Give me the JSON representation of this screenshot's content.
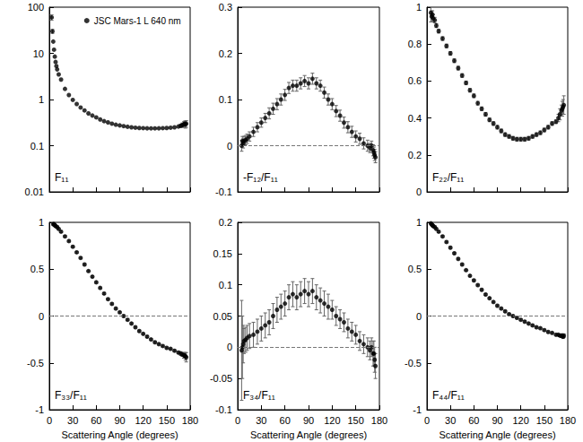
{
  "chart_data": [
    {
      "type": "scatter",
      "annotation": "F₁₁",
      "log": "y",
      "grid": false,
      "tick_labels": "y",
      "legend": "upper right",
      "xlim": [
        0,
        180
      ],
      "xticks": [
        0,
        30,
        60,
        90,
        120,
        150,
        180
      ],
      "ylim": [
        0.01,
        100
      ],
      "yticks": [
        0.01,
        0.1,
        1,
        10,
        100
      ],
      "x": [
        3,
        4,
        5,
        6,
        7,
        8,
        9,
        10,
        12,
        15,
        20,
        25,
        30,
        35,
        40,
        45,
        50,
        55,
        60,
        65,
        70,
        75,
        80,
        85,
        90,
        95,
        100,
        105,
        110,
        115,
        120,
        125,
        130,
        135,
        140,
        145,
        150,
        155,
        160,
        165,
        168,
        170,
        172,
        173,
        174,
        175
      ],
      "series": [
        {
          "name": "JSC Mars-1 L 640 nm",
          "color": "#000000",
          "marker": "circle",
          "values": [
            60,
            30,
            18,
            12,
            8.5,
            6.5,
            5.3,
            4.5,
            3.5,
            2.7,
            1.7,
            1.25,
            0.98,
            0.8,
            0.67,
            0.58,
            0.5,
            0.45,
            0.41,
            0.37,
            0.34,
            0.32,
            0.3,
            0.285,
            0.275,
            0.265,
            0.257,
            0.25,
            0.245,
            0.242,
            0.24,
            0.238,
            0.237,
            0.237,
            0.238,
            0.24,
            0.242,
            0.245,
            0.25,
            0.26,
            0.27,
            0.28,
            0.29,
            0.3,
            0.29,
            0.3
          ],
          "errors": [
            8,
            3,
            0,
            0,
            0,
            0,
            0,
            0,
            0,
            0,
            0,
            0,
            0,
            0,
            0,
            0,
            0,
            0,
            0,
            0,
            0,
            0,
            0,
            0,
            0,
            0,
            0,
            0,
            0,
            0,
            0,
            0,
            0,
            0,
            0,
            0,
            0,
            0,
            0,
            0,
            0.02,
            0.03,
            0.04,
            0.04,
            0.05,
            0.05
          ]
        }
      ]
    },
    {
      "type": "scatter",
      "annotation": "-F₁₂/F₁₁",
      "grid": false,
      "tick_labels": "y",
      "hline": 0,
      "xlim": [
        0,
        180
      ],
      "xticks": [
        0,
        30,
        60,
        90,
        120,
        150,
        180
      ],
      "ylim": [
        -0.1,
        0.3
      ],
      "yticks": [
        -0.1,
        0,
        0.1,
        0.2,
        0.3
      ],
      "x": [
        5,
        6,
        7,
        8,
        10,
        12,
        15,
        20,
        25,
        30,
        35,
        40,
        45,
        50,
        55,
        60,
        65,
        70,
        75,
        80,
        85,
        90,
        95,
        100,
        105,
        110,
        115,
        120,
        125,
        130,
        135,
        140,
        145,
        150,
        155,
        160,
        165,
        168,
        170,
        172,
        173,
        174,
        175
      ],
      "series": [
        {
          "color": "#000000",
          "marker": "circle",
          "values": [
            0,
            0.01,
            0.005,
            0.01,
            0.012,
            0.015,
            0.02,
            0.03,
            0.04,
            0.05,
            0.06,
            0.07,
            0.08,
            0.09,
            0.1,
            0.11,
            0.125,
            0.13,
            0.13,
            0.135,
            0.14,
            0.135,
            0.145,
            0.135,
            0.13,
            0.115,
            0.1,
            0.09,
            0.075,
            0.065,
            0.05,
            0.04,
            0.03,
            0.02,
            0.015,
            0.005,
            0,
            -0.005,
            0,
            -0.01,
            -0.015,
            -0.02,
            -0.025
          ],
          "errors": [
            0.012,
            0.01,
            0.01,
            0.01,
            0.01,
            0.01,
            0.01,
            0.01,
            0.01,
            0.01,
            0.01,
            0.012,
            0.012,
            0.012,
            0.012,
            0.012,
            0.012,
            0.012,
            0.012,
            0.012,
            0.012,
            0.012,
            0.012,
            0.012,
            0.012,
            0.012,
            0.012,
            0.012,
            0.012,
            0.012,
            0.012,
            0.012,
            0.012,
            0.012,
            0.012,
            0.012,
            0.012,
            0.01,
            0.01,
            0.012,
            0.012,
            0.012,
            0.012
          ]
        }
      ]
    },
    {
      "type": "scatter",
      "annotation": "F₂₂/F₁₁",
      "grid": false,
      "tick_labels": "y",
      "xlim": [
        0,
        180
      ],
      "xticks": [
        0,
        30,
        60,
        90,
        120,
        150,
        180
      ],
      "ylim": [
        0,
        1
      ],
      "yticks": [
        0,
        0.2,
        0.4,
        0.6,
        0.8,
        1
      ],
      "x": [
        5,
        6,
        7,
        8,
        10,
        12,
        15,
        20,
        25,
        30,
        35,
        40,
        45,
        50,
        55,
        60,
        65,
        70,
        75,
        80,
        85,
        90,
        95,
        100,
        105,
        110,
        115,
        120,
        125,
        130,
        135,
        140,
        145,
        150,
        155,
        160,
        165,
        168,
        170,
        172,
        173,
        174,
        175
      ],
      "series": [
        {
          "color": "#000000",
          "marker": "circle",
          "values": [
            0.97,
            0.95,
            0.96,
            0.94,
            0.93,
            0.9,
            0.87,
            0.83,
            0.79,
            0.75,
            0.71,
            0.67,
            0.63,
            0.59,
            0.55,
            0.52,
            0.48,
            0.45,
            0.42,
            0.39,
            0.37,
            0.35,
            0.33,
            0.31,
            0.3,
            0.29,
            0.285,
            0.285,
            0.285,
            0.29,
            0.3,
            0.31,
            0.32,
            0.335,
            0.35,
            0.37,
            0.38,
            0.4,
            0.42,
            0.44,
            0.45,
            0.46,
            0.47
          ],
          "errors": [
            0.05,
            0.03,
            0.02,
            0.02,
            0.015,
            0.01,
            0.01,
            0.01,
            0.01,
            0.01,
            0.01,
            0.01,
            0.01,
            0.01,
            0.01,
            0.01,
            0.01,
            0.01,
            0.01,
            0.01,
            0.01,
            0.01,
            0.01,
            0.01,
            0.01,
            0.01,
            0.01,
            0.01,
            0.01,
            0.01,
            0.01,
            0.01,
            0.01,
            0.01,
            0.01,
            0.01,
            0.01,
            0.02,
            0.03,
            0.03,
            0.04,
            0.04,
            0.05
          ]
        }
      ]
    },
    {
      "type": "scatter",
      "annotation": "F₃₃/F₁₁",
      "grid": false,
      "hline": 0,
      "xlabel": "Scattering Angle (degrees)",
      "xlim": [
        0,
        180
      ],
      "xticks": [
        0,
        30,
        60,
        90,
        120,
        150,
        180
      ],
      "ylim": [
        -1,
        1
      ],
      "yticks": [
        -1,
        -0.5,
        0,
        0.5,
        1
      ],
      "x": [
        5,
        6,
        7,
        8,
        10,
        12,
        15,
        20,
        25,
        30,
        35,
        40,
        45,
        50,
        55,
        60,
        65,
        70,
        75,
        80,
        85,
        90,
        95,
        100,
        105,
        110,
        115,
        120,
        125,
        130,
        135,
        140,
        145,
        150,
        155,
        160,
        165,
        168,
        170,
        172,
        173,
        174,
        175
      ],
      "series": [
        {
          "color": "#000000",
          "marker": "circle",
          "values": [
            0.98,
            0.98,
            0.97,
            0.96,
            0.95,
            0.93,
            0.9,
            0.85,
            0.8,
            0.74,
            0.68,
            0.62,
            0.55,
            0.48,
            0.42,
            0.36,
            0.3,
            0.24,
            0.18,
            0.13,
            0.08,
            0.04,
            0,
            -0.04,
            -0.08,
            -0.12,
            -0.16,
            -0.19,
            -0.22,
            -0.25,
            -0.28,
            -0.3,
            -0.32,
            -0.34,
            -0.35,
            -0.37,
            -0.39,
            -0.4,
            -0.41,
            -0.42,
            -0.42,
            -0.43,
            -0.44
          ],
          "errors": [
            0.01,
            0.01,
            0.01,
            0.01,
            0.01,
            0.01,
            0.01,
            0.01,
            0.01,
            0.01,
            0.01,
            0.01,
            0.01,
            0.01,
            0.01,
            0.01,
            0.01,
            0.01,
            0.01,
            0.01,
            0.01,
            0.01,
            0.01,
            0.01,
            0.01,
            0.01,
            0.01,
            0.01,
            0.01,
            0.01,
            0.01,
            0.01,
            0.01,
            0.01,
            0.01,
            0.01,
            0.01,
            0.02,
            0.02,
            0.03,
            0.03,
            0.04,
            0.05
          ]
        }
      ]
    },
    {
      "type": "scatter",
      "annotation": "F₃₄/F₁₁",
      "grid": false,
      "hline": 0,
      "xlabel": "Scattering Angle (degrees)",
      "xlim": [
        0,
        180
      ],
      "xticks": [
        0,
        30,
        60,
        90,
        120,
        150,
        180
      ],
      "ylim": [
        -0.1,
        0.2
      ],
      "yticks": [
        -0.1,
        -0.05,
        0,
        0.05,
        0.1,
        0.15,
        0.2
      ],
      "x": [
        5,
        6,
        7,
        8,
        10,
        12,
        15,
        20,
        25,
        30,
        35,
        40,
        45,
        50,
        55,
        60,
        65,
        70,
        75,
        80,
        85,
        90,
        95,
        100,
        105,
        110,
        115,
        120,
        125,
        130,
        135,
        140,
        145,
        150,
        155,
        160,
        165,
        168,
        170,
        172,
        173,
        174,
        175
      ],
      "series": [
        {
          "color": "#000000",
          "marker": "circle",
          "values": [
            -0.005,
            0,
            0.005,
            0.01,
            0.012,
            0.015,
            0.018,
            0.02,
            0.025,
            0.03,
            0.035,
            0.04,
            0.05,
            0.06,
            0.065,
            0.07,
            0.08,
            0.085,
            0.08,
            0.085,
            0.09,
            0.085,
            0.09,
            0.08,
            0.075,
            0.07,
            0.065,
            0.06,
            0.05,
            0.045,
            0.04,
            0.03,
            0.025,
            0.02,
            0.01,
            0.005,
            0,
            -0.005,
            0,
            -0.01,
            -0.01,
            -0.02,
            -0.03
          ],
          "errors": [
            0.08,
            0.05,
            0.03,
            0.02,
            0.02,
            0.02,
            0.02,
            0.02,
            0.02,
            0.02,
            0.02,
            0.02,
            0.02,
            0.02,
            0.02,
            0.02,
            0.02,
            0.02,
            0.02,
            0.02,
            0.02,
            0.02,
            0.02,
            0.02,
            0.02,
            0.02,
            0.02,
            0.015,
            0.015,
            0.015,
            0.015,
            0.015,
            0.015,
            0.015,
            0.015,
            0.015,
            0.015,
            0.015,
            0.015,
            0.02,
            0.02,
            0.02,
            0.02
          ]
        }
      ]
    },
    {
      "type": "scatter",
      "annotation": "F₄₄/F₁₁",
      "grid": false,
      "hline": 0,
      "xlabel": "Scattering Angle (degrees)",
      "xlim": [
        0,
        180
      ],
      "xticks": [
        0,
        30,
        60,
        90,
        120,
        150,
        180
      ],
      "ylim": [
        -1,
        1
      ],
      "yticks": [
        -1,
        -0.5,
        0,
        0.5,
        1
      ],
      "x": [
        5,
        6,
        7,
        8,
        10,
        12,
        15,
        20,
        25,
        30,
        35,
        40,
        45,
        50,
        55,
        60,
        65,
        70,
        75,
        80,
        85,
        90,
        95,
        100,
        105,
        110,
        115,
        120,
        125,
        130,
        135,
        140,
        145,
        150,
        155,
        160,
        165,
        168,
        170,
        172,
        173,
        174,
        175
      ],
      "series": [
        {
          "color": "#000000",
          "marker": "circle",
          "values": [
            0.99,
            0.98,
            0.97,
            0.96,
            0.95,
            0.93,
            0.9,
            0.85,
            0.79,
            0.73,
            0.67,
            0.61,
            0.55,
            0.49,
            0.43,
            0.38,
            0.33,
            0.28,
            0.23,
            0.19,
            0.15,
            0.11,
            0.08,
            0.05,
            0.02,
            0,
            -0.02,
            -0.04,
            -0.06,
            -0.08,
            -0.1,
            -0.12,
            -0.13,
            -0.15,
            -0.17,
            -0.18,
            -0.2,
            -0.2,
            -0.21,
            -0.21,
            -0.21,
            -0.22,
            -0.21
          ],
          "errors": [
            0.01,
            0.01,
            0.01,
            0.01,
            0.01,
            0.01,
            0.01,
            0.01,
            0.01,
            0.01,
            0.01,
            0.01,
            0.01,
            0.01,
            0.01,
            0.01,
            0.01,
            0.01,
            0.01,
            0.01,
            0.01,
            0.01,
            0.01,
            0.01,
            0.01,
            0.01,
            0.01,
            0.01,
            0.01,
            0.01,
            0.01,
            0.01,
            0.01,
            0.01,
            0.01,
            0.01,
            0.01,
            0.01,
            0.01,
            0.02,
            0.02,
            0.02,
            0.02
          ]
        }
      ]
    }
  ]
}
